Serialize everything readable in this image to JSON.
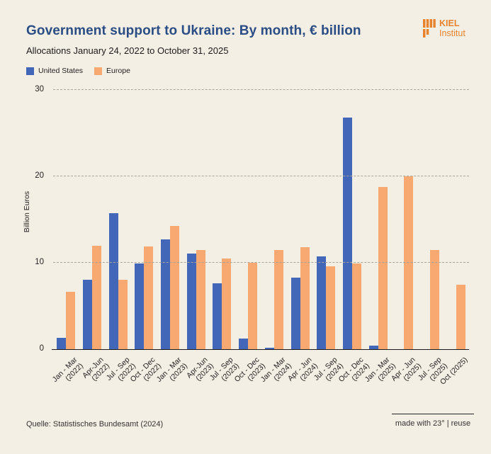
{
  "header": {
    "title": "Government support to Ukraine: By month, € billion",
    "subtitle": "Allocations January 24, 2022 to October 31, 2025",
    "logo": {
      "line1": "KIEL",
      "line2": "Institut",
      "color": "#e8832d"
    }
  },
  "legend": [
    {
      "label": "United States",
      "color": "#4267b8"
    },
    {
      "label": "Europe",
      "color": "#f8a871"
    }
  ],
  "chart_data": {
    "type": "bar",
    "title": "Government support to Ukraine: By month, € billion",
    "subtitle": "Allocations January 24, 2022 to October 31, 2025",
    "xlabel": "",
    "ylabel": "Billion Euros",
    "ylim": [
      0,
      30
    ],
    "yticks": [
      0,
      10,
      20,
      30
    ],
    "grid": "horizontal-dashed",
    "legend_position": "top-left",
    "categories": [
      "Jan - Mar (2022)",
      "Apr-Jun (2022)",
      "Jul - Sep (2022)",
      "Oct - Dec (2022)",
      "Jan - Mar (2023)",
      "Apr-Jun (2023)",
      "Jul - Sep (2023)",
      "Oct - Dec (2023)",
      "Jan - Mar (2024)",
      "Apr - Jun (2024)",
      "Jul - Sep (2024)",
      "Oct - Dec (2024)",
      "Jan - Mar (2025)",
      "Apr - Jun (2025)",
      "Jul - Sep (2025)",
      "Oct (2025)"
    ],
    "category_display": [
      [
        "Jan - Mar",
        "(2022)"
      ],
      [
        "Apr-Jun",
        "(2022)"
      ],
      [
        "Jul - Sep",
        "(2022)"
      ],
      [
        "Oct - Dec",
        "(2022)"
      ],
      [
        "Jan - Mar",
        "(2023)"
      ],
      [
        "Apr-Jun",
        "(2023)"
      ],
      [
        "Jul - Sep",
        "(2023)"
      ],
      [
        "Oct - Dec",
        "(2023)"
      ],
      [
        "Jan - Mar",
        "(2024)"
      ],
      [
        "Apr - Jun",
        "(2024)"
      ],
      [
        "Jul - Sep",
        "(2024)"
      ],
      [
        "Oct - Dec",
        "(2024)"
      ],
      [
        "Jan - Mar",
        "(2025)"
      ],
      [
        "Apr - Jun",
        "(2025)"
      ],
      [
        "Jul - Sep",
        "(2025)"
      ],
      [
        "Oct (2025)"
      ]
    ],
    "series": [
      {
        "name": "United States",
        "color": "#4267b8",
        "values": [
          1.3,
          8.0,
          15.7,
          9.9,
          12.7,
          11.1,
          7.6,
          1.2,
          0.2,
          8.3,
          10.7,
          26.8,
          0.4,
          0,
          0,
          0
        ]
      },
      {
        "name": "Europe",
        "color": "#f8a871",
        "values": [
          6.6,
          12.0,
          8.0,
          11.9,
          14.3,
          11.5,
          10.5,
          10.0,
          11.5,
          11.8,
          9.6,
          9.9,
          18.8,
          20.0,
          11.5,
          7.5
        ]
      }
    ]
  },
  "footer": {
    "source": "Quelle: Statistisches Bundesamt (2024)",
    "made_with": "made with 23° | reuse"
  },
  "colors": {
    "background": "#f4efe4",
    "title": "#2a4d85",
    "us_bar": "#4267b8",
    "europe_bar": "#f8a871",
    "gridline": "#aaa59a",
    "axis": "#1a1a1a",
    "logo": "#e8832d"
  }
}
